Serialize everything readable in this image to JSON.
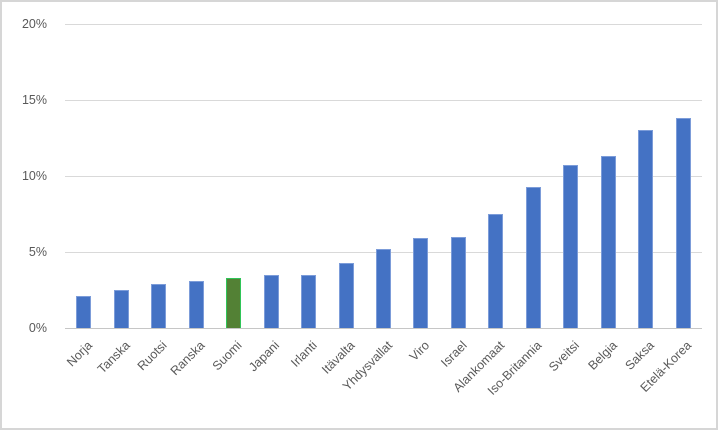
{
  "frame": {
    "background": "#FFFFFF",
    "border_color": "#D6D6D6"
  },
  "chart_data": {
    "type": "bar",
    "title": "",
    "xlabel": "",
    "ylabel": "",
    "categories": [
      "Norja",
      "Tanska",
      "Ruotsi",
      "Ranska",
      "Suomi",
      "Japani",
      "Irlanti",
      "Itävalta",
      "Yhdysvallat",
      "Viro",
      "Israel",
      "Alankomaat",
      "Iso-Britannia",
      "Sveitsi",
      "Belgia",
      "Saksa",
      "Etelä-Korea"
    ],
    "values": [
      2.1,
      2.5,
      2.9,
      3.1,
      3.3,
      3.5,
      3.5,
      4.3,
      5.2,
      5.9,
      6.0,
      7.5,
      9.3,
      10.7,
      11.3,
      13.0,
      13.8
    ],
    "value_unit": "%",
    "highlight_category": "Suomi",
    "ylim": [
      0,
      20
    ],
    "yticks": [
      {
        "label": "0%",
        "value": 0
      },
      {
        "label": "5%",
        "value": 5
      },
      {
        "label": "10%",
        "value": 10
      },
      {
        "label": "15%",
        "value": 15
      },
      {
        "label": "20%",
        "value": 20
      }
    ],
    "grid": true,
    "legend": "none",
    "x_label_rotation_deg": 45,
    "colors": {
      "bar_fill": "#4472C4",
      "bar_border": "#7C9CD9",
      "highlight_fill": "#538135",
      "highlight_border": "#2FC558",
      "gridline": "#D9D9D9",
      "axis_line": "#C6C6C6",
      "tick_label": "#595959"
    }
  }
}
